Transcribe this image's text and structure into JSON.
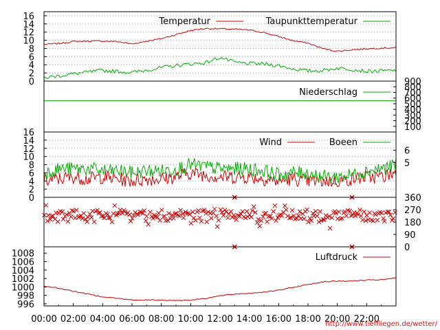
{
  "chart_data": [
    {
      "panel": "temperature",
      "type": "line",
      "x_hours": [
        0,
        1,
        2,
        3,
        4,
        5,
        6,
        7,
        8,
        9,
        10,
        11,
        12,
        13,
        14,
        15,
        16,
        17,
        18,
        19,
        20,
        21,
        22,
        23,
        24
      ],
      "x_ticks": [
        "00:00",
        "02:00",
        "04:00",
        "06:00",
        "08:00",
        "10:00",
        "12:00",
        "14:00",
        "16:00",
        "18:00",
        "20:00",
        "22:00"
      ],
      "y_ticks": [
        0,
        2,
        4,
        6,
        8,
        10,
        12,
        14,
        16
      ],
      "ylim": [
        0,
        17
      ],
      "grid": true,
      "legend_position": "top-right",
      "series": [
        {
          "name": "Temperatur",
          "color": "#cc0000",
          "values": [
            9.0,
            9.2,
            9.7,
            9.8,
            9.8,
            9.7,
            9.1,
            9.8,
            10.4,
            11.4,
            12.4,
            12.9,
            12.8,
            12.7,
            12.5,
            11.9,
            10.9,
            9.9,
            9.3,
            8.0,
            7.3,
            7.7,
            7.9,
            8.1,
            8.2
          ]
        },
        {
          "name": "Taupunkttemperatur",
          "color": "#00aa00",
          "values": [
            0.8,
            1.3,
            1.8,
            2.2,
            2.6,
            2.4,
            2.1,
            2.7,
            3.3,
            3.8,
            4.2,
            4.5,
            5.8,
            4.6,
            4.3,
            4.2,
            3.8,
            3.0,
            2.5,
            2.6,
            3.2,
            2.9,
            2.4,
            2.5,
            2.6
          ]
        }
      ]
    },
    {
      "panel": "precipitation",
      "type": "line",
      "y_ticks_right": [
        100,
        200,
        300,
        400,
        500,
        600,
        700,
        800,
        900
      ],
      "ylim": [
        0,
        900
      ],
      "grid": false,
      "legend_position": "top-right",
      "series": [
        {
          "name": "Niederschlag",
          "color": "#00aa00",
          "values_constant": 555
        }
      ]
    },
    {
      "panel": "wind",
      "type": "line",
      "x_hours": [
        0,
        1,
        2,
        3,
        4,
        5,
        6,
        7,
        8,
        9,
        10,
        11,
        12,
        13,
        14,
        15,
        16,
        17,
        18,
        19,
        20,
        21,
        22,
        23,
        24
      ],
      "y_ticks": [
        0,
        2,
        4,
        6,
        8,
        10,
        12,
        14,
        16
      ],
      "y_ticks_right": [
        5,
        6
      ],
      "y_right_tick_values": [
        8.5,
        11.5
      ],
      "ylim": [
        0,
        16
      ],
      "grid": true,
      "legend_position": "top-right",
      "series": [
        {
          "name": "Wind",
          "color": "#cc0000",
          "values": [
            4,
            4.5,
            5,
            4.5,
            5,
            4.5,
            4,
            4.5,
            4.5,
            5,
            6,
            5.5,
            5,
            5,
            5,
            4.5,
            4,
            4.5,
            4,
            4,
            4,
            4.5,
            5,
            5,
            6
          ]
        },
        {
          "name": "Boeen",
          "color": "#00aa00",
          "values": [
            6,
            7,
            7,
            7,
            6.5,
            6.5,
            6,
            6.5,
            6.5,
            7,
            8,
            7.5,
            7,
            7,
            7,
            6.5,
            5.5,
            6,
            6,
            5,
            5,
            5.5,
            6.5,
            7,
            8
          ]
        }
      ]
    },
    {
      "panel": "wind_direction",
      "type": "scatter",
      "marker": "x",
      "color": "#cc0000",
      "y_ticks_right": [
        0,
        90,
        180,
        270,
        360
      ],
      "ylim": [
        0,
        360
      ],
      "grid": false,
      "typical_direction_range": [
        180,
        270
      ],
      "calm_markers_at_hours": [
        13,
        21
      ]
    },
    {
      "panel": "pressure",
      "type": "line",
      "x_hours": [
        0,
        1,
        2,
        3,
        4,
        5,
        6,
        7,
        8,
        9,
        10,
        11,
        12,
        13,
        14,
        15,
        16,
        17,
        18,
        19,
        20,
        21,
        22,
        23,
        24
      ],
      "y_ticks": [
        996,
        998,
        1000,
        1002,
        1004,
        1006,
        1008
      ],
      "ylim": [
        995.5,
        1009.5
      ],
      "grid": false,
      "legend_position": "top-right",
      "series": [
        {
          "name": "Luftdruck",
          "color": "#cc0000",
          "values": [
            1000.2,
            999.7,
            999.0,
            998.3,
            997.7,
            997.3,
            996.9,
            996.9,
            996.9,
            996.8,
            996.9,
            997.3,
            997.9,
            998.3,
            998.5,
            998.8,
            999.2,
            999.9,
            1000.6,
            1001.2,
            1001.4,
            1001.4,
            1001.6,
            1001.7,
            1002.1
          ]
        }
      ]
    }
  ],
  "footer": {
    "url": "http://www.tieffliegen.de/wetter/"
  }
}
